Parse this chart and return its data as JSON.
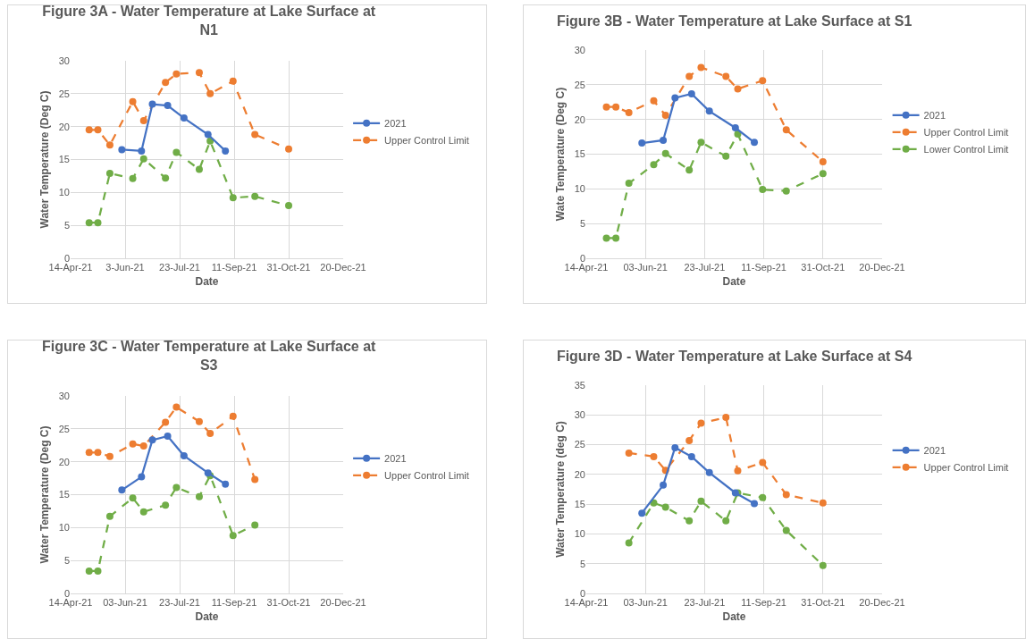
{
  "chart_data": [
    {
      "type": "line",
      "title": "Figure 3A - Water Temperature at Lake Surface at N1",
      "xlabel": "Date",
      "ylabel": "Water Temperature (Deg C)",
      "xlim": [
        "2021-04-14",
        "2021-12-20"
      ],
      "xticks": [
        {
          "value": "2021-04-14",
          "label": "14-Apr-21"
        },
        {
          "value": "2021-06-03",
          "label": "3-Jun-21"
        },
        {
          "value": "2021-07-23",
          "label": "23-Jul-21"
        },
        {
          "value": "2021-09-11",
          "label": "11-Sep-21"
        },
        {
          "value": "2021-10-31",
          "label": "31-Oct-21"
        },
        {
          "value": "2021-12-20",
          "label": "20-Dec-21"
        }
      ],
      "ylim": [
        0,
        30
      ],
      "yticks": [
        0,
        5,
        10,
        15,
        20,
        25,
        30
      ],
      "grid": true,
      "legend": "right",
      "marker": "circle",
      "series": [
        {
          "name": "2021",
          "color": "#4472c4",
          "line_style": "solid",
          "x": [
            "2021-05-31",
            "2021-06-18",
            "2021-06-28",
            "2021-07-12",
            "2021-07-27",
            "2021-08-18",
            "2021-09-03"
          ],
          "values": [
            16.5,
            16.3,
            23.4,
            23.2,
            21.3,
            18.8,
            16.3
          ]
        },
        {
          "name": "Upper Control Limit",
          "color": "#ed7d31",
          "line_style": "dashed",
          "x": [
            "2021-05-01",
            "2021-05-09",
            "2021-05-20",
            "2021-06-10",
            "2021-06-20",
            "2021-07-10",
            "2021-07-20",
            "2021-08-10",
            "2021-08-20",
            "2021-09-10",
            "2021-09-30",
            "2021-10-31"
          ],
          "values": [
            19.5,
            19.5,
            17.2,
            23.8,
            20.9,
            26.7,
            28.0,
            28.2,
            25.0,
            26.9,
            18.8,
            16.6
          ]
        },
        {
          "color": "#70ad47",
          "line_style": "dashed",
          "x": [
            "2021-05-01",
            "2021-05-09",
            "2021-05-20",
            "2021-06-10",
            "2021-06-20",
            "2021-07-10",
            "2021-07-20",
            "2021-08-10",
            "2021-08-20",
            "2021-09-10",
            "2021-09-30",
            "2021-10-31"
          ],
          "values": [
            5.4,
            5.4,
            12.9,
            12.1,
            15.1,
            12.2,
            16.1,
            13.5,
            17.8,
            9.2,
            9.4,
            8.0
          ]
        }
      ]
    },
    {
      "type": "line",
      "title": "Figure 3B - Water Temperature at Lake Surface at S1",
      "xlabel": "Date",
      "ylabel": "Wate Temperature (Deg C)",
      "xlim": [
        "2021-04-14",
        "2021-12-20"
      ],
      "xticks": [
        {
          "value": "2021-04-14",
          "label": "14-Apr-21"
        },
        {
          "value": "2021-06-03",
          "label": "03-Jun-21"
        },
        {
          "value": "2021-07-23",
          "label": "23-Jul-21"
        },
        {
          "value": "2021-09-11",
          "label": "11-Sep-21"
        },
        {
          "value": "2021-10-31",
          "label": "31-Oct-21"
        },
        {
          "value": "2021-12-20",
          "label": "20-Dec-21"
        }
      ],
      "ylim": [
        0,
        30
      ],
      "yticks": [
        0,
        5,
        10,
        15,
        20,
        25,
        30
      ],
      "grid": true,
      "legend": "right",
      "marker": "circle",
      "series": [
        {
          "name": "2021",
          "color": "#4472c4",
          "line_style": "solid",
          "x": [
            "2021-05-31",
            "2021-06-18",
            "2021-06-28",
            "2021-07-12",
            "2021-07-27",
            "2021-08-18",
            "2021-09-03"
          ],
          "values": [
            16.6,
            17.0,
            23.1,
            23.7,
            21.2,
            18.8,
            16.7
          ]
        },
        {
          "name": "Upper Control Limit",
          "color": "#ed7d31",
          "line_style": "dashed",
          "x": [
            "2021-05-01",
            "2021-05-09",
            "2021-05-20",
            "2021-06-10",
            "2021-06-20",
            "2021-07-10",
            "2021-07-20",
            "2021-08-10",
            "2021-08-20",
            "2021-09-10",
            "2021-09-30",
            "2021-10-31"
          ],
          "values": [
            21.8,
            21.8,
            21.0,
            22.7,
            20.6,
            26.2,
            27.5,
            26.2,
            24.4,
            25.6,
            18.5,
            13.9
          ]
        },
        {
          "name": "Lower Control Limit",
          "color": "#70ad47",
          "line_style": "dashed",
          "x": [
            "2021-05-01",
            "2021-05-09",
            "2021-05-20",
            "2021-06-10",
            "2021-06-20",
            "2021-07-10",
            "2021-07-20",
            "2021-08-10",
            "2021-08-20",
            "2021-09-10",
            "2021-09-30",
            "2021-10-31"
          ],
          "values": [
            2.9,
            2.9,
            10.8,
            13.5,
            15.1,
            12.7,
            16.7,
            14.7,
            17.9,
            9.9,
            9.7,
            12.2
          ]
        }
      ]
    },
    {
      "type": "line",
      "title": "Figure 3C - Water Temperature at Lake Surface at S3",
      "xlabel": "Date",
      "ylabel": "Water Temperature (Deg C)",
      "xlim": [
        "2021-04-14",
        "2021-12-20"
      ],
      "xticks": [
        {
          "value": "2021-04-14",
          "label": "14-Apr-21"
        },
        {
          "value": "2021-06-03",
          "label": "03-Jun-21"
        },
        {
          "value": "2021-07-23",
          "label": "23-Jul-21"
        },
        {
          "value": "2021-09-11",
          "label": "11-Sep-21"
        },
        {
          "value": "2021-10-31",
          "label": "31-Oct-21"
        },
        {
          "value": "2021-12-20",
          "label": "20-Dec-21"
        }
      ],
      "ylim": [
        0,
        30
      ],
      "yticks": [
        0,
        5,
        10,
        15,
        20,
        25,
        30
      ],
      "grid": true,
      "legend": "right",
      "marker": "circle",
      "series": [
        {
          "name": "2021",
          "color": "#4472c4",
          "line_style": "solid",
          "x": [
            "2021-05-31",
            "2021-06-18",
            "2021-06-28",
            "2021-07-12",
            "2021-07-27",
            "2021-08-18",
            "2021-09-03"
          ],
          "values": [
            15.7,
            17.7,
            23.3,
            23.9,
            20.9,
            18.3,
            16.6
          ]
        },
        {
          "name": "Upper Control Limit",
          "color": "#ed7d31",
          "line_style": "dashed",
          "x": [
            "2021-05-01",
            "2021-05-09",
            "2021-05-20",
            "2021-06-10",
            "2021-06-20",
            "2021-07-10",
            "2021-07-20",
            "2021-08-10",
            "2021-08-20",
            "2021-09-10",
            "2021-09-30"
          ],
          "values": [
            21.4,
            21.4,
            20.8,
            22.7,
            22.4,
            26.0,
            28.3,
            26.1,
            24.3,
            26.9,
            17.3
          ]
        },
        {
          "color": "#70ad47",
          "line_style": "dashed",
          "x": [
            "2021-05-01",
            "2021-05-09",
            "2021-05-20",
            "2021-06-10",
            "2021-06-20",
            "2021-07-10",
            "2021-07-20",
            "2021-08-10",
            "2021-08-20",
            "2021-09-10",
            "2021-09-30"
          ],
          "values": [
            3.4,
            3.4,
            11.7,
            14.5,
            12.4,
            13.4,
            16.1,
            14.7,
            17.9,
            8.8,
            10.4
          ]
        }
      ]
    },
    {
      "type": "line",
      "title": "Figure 3D - Water Temperature at Lake Surface at S4",
      "xlabel": "Date",
      "ylabel": "Water Temperature (deg C)",
      "xlim": [
        "2021-04-14",
        "2021-12-20"
      ],
      "xticks": [
        {
          "value": "2021-04-14",
          "label": "14-Apr-21"
        },
        {
          "value": "2021-06-03",
          "label": "03-Jun-21"
        },
        {
          "value": "2021-07-23",
          "label": "23-Jul-21"
        },
        {
          "value": "2021-09-11",
          "label": "11-Sep-21"
        },
        {
          "value": "2021-10-31",
          "label": "31-Oct-21"
        },
        {
          "value": "2021-12-20",
          "label": "20-Dec-21"
        }
      ],
      "ylim": [
        0,
        35
      ],
      "yticks": [
        0,
        5,
        10,
        15,
        20,
        25,
        30,
        35
      ],
      "grid": true,
      "legend": "right",
      "marker": "circle",
      "series": [
        {
          "name": "2021",
          "color": "#4472c4",
          "line_style": "solid",
          "x": [
            "2021-05-31",
            "2021-06-18",
            "2021-06-28",
            "2021-07-12",
            "2021-07-27",
            "2021-08-18",
            "2021-09-03"
          ],
          "values": [
            13.5,
            18.2,
            24.5,
            23.0,
            20.3,
            16.9,
            15.1
          ]
        },
        {
          "name": "Upper Control Limit",
          "color": "#ed7d31",
          "line_style": "dashed",
          "x": [
            "2021-05-20",
            "2021-06-10",
            "2021-06-20",
            "2021-07-10",
            "2021-07-20",
            "2021-08-10",
            "2021-08-20",
            "2021-09-10",
            "2021-09-30",
            "2021-10-31"
          ],
          "values": [
            23.6,
            23.0,
            20.7,
            25.7,
            28.6,
            29.6,
            20.6,
            22.0,
            16.6,
            15.2
          ]
        },
        {
          "color": "#70ad47",
          "line_style": "dashed",
          "x": [
            "2021-05-20",
            "2021-06-10",
            "2021-06-20",
            "2021-07-10",
            "2021-07-20",
            "2021-08-10",
            "2021-08-20",
            "2021-09-10",
            "2021-09-30",
            "2021-10-31"
          ],
          "values": [
            8.5,
            15.2,
            14.5,
            12.2,
            15.5,
            12.2,
            16.9,
            16.1,
            10.6,
            4.7
          ]
        }
      ]
    }
  ]
}
